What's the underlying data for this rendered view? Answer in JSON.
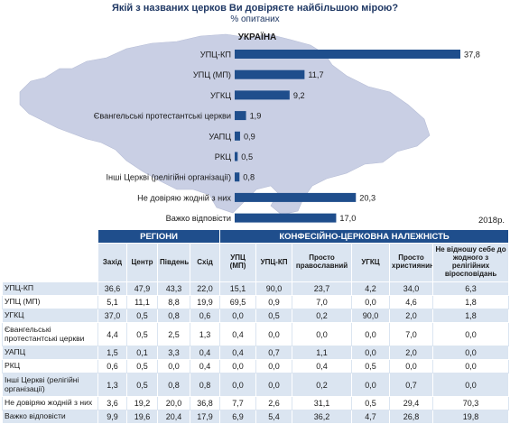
{
  "title": "Якій з названих церков Ви довіряєте найбільшою мірою?",
  "subtitle": "% опитаних",
  "year_label": "2018р.",
  "map_label": "УКРАЇНА",
  "colors": {
    "bar": "#1f4e8c",
    "map": "#c9cfe4",
    "header": "#1f4e8c",
    "row_alt": "#dbe5f1"
  },
  "chart_data": {
    "type": "bar",
    "orientation": "horizontal",
    "categories": [
      "УПЦ-КП",
      "УПЦ (МП)",
      "УГКЦ",
      "Євангельські протестантські церкви",
      "УАПЦ",
      "РКЦ",
      "Інші Церкві (релігійні організації)",
      "Не довіряю жодній з них",
      "Важко відповісти"
    ],
    "value_labels": [
      "37,8",
      "11,7",
      "9,2",
      "1,9",
      "0,9",
      "0,5",
      "0,8",
      "20,3",
      "17,0"
    ],
    "values": [
      37.8,
      11.7,
      9.2,
      1.9,
      0.9,
      0.5,
      0.8,
      20.3,
      17.0
    ]
  },
  "table": {
    "group_regions": "РЕГІОНИ",
    "group_confession": "КОНФЕСІЙНО-ЦЕРКОВНА НАЛЕЖНІСТЬ",
    "columns": [
      "Захід",
      "Центр",
      "Південь",
      "Схід",
      "УПЦ (МП)",
      "УПЦ-КП",
      "Просто православний",
      "УГКЦ",
      "Просто християнин",
      "Не відношу себе до жодного з релігійних віросповідань"
    ],
    "rows": [
      {
        "label": "УПЦ-КП",
        "values": [
          "36,6",
          "47,9",
          "43,3",
          "22,0",
          "15,1",
          "90,0",
          "23,7",
          "4,2",
          "34,0",
          "6,3"
        ]
      },
      {
        "label": "УПЦ (МП)",
        "values": [
          "5,1",
          "11,1",
          "8,8",
          "19,9",
          "69,5",
          "0,9",
          "7,0",
          "0,0",
          "4,6",
          "1,8"
        ]
      },
      {
        "label": "УГКЦ",
        "values": [
          "37,0",
          "0,5",
          "0,8",
          "0,6",
          "0,0",
          "0,5",
          "0,2",
          "90,0",
          "2,0",
          "1,8"
        ]
      },
      {
        "label": "Євангельські протестантські церкви",
        "values": [
          "4,4",
          "0,5",
          "2,5",
          "1,3",
          "0,4",
          "0,0",
          "0,0",
          "0,0",
          "7,0",
          "0,0"
        ]
      },
      {
        "label": "УАПЦ",
        "values": [
          "1,5",
          "0,1",
          "3,3",
          "0,4",
          "0,4",
          "0,7",
          "1,1",
          "0,0",
          "2,0",
          "0,0"
        ]
      },
      {
        "label": "РКЦ",
        "values": [
          "0,6",
          "0,5",
          "0,0",
          "0,4",
          "0,0",
          "0,0",
          "0,4",
          "0,5",
          "0,0",
          "0,0"
        ]
      },
      {
        "label": "Інші Церкві (релігійні організації)",
        "values": [
          "1,3",
          "0,5",
          "0,8",
          "0,8",
          "0,0",
          "0,0",
          "0,2",
          "0,0",
          "0,7",
          "0,0"
        ]
      },
      {
        "label": "Не довіряю жодній з них",
        "values": [
          "3,6",
          "19,2",
          "20,0",
          "36,8",
          "7,7",
          "2,6",
          "31,1",
          "0,5",
          "29,4",
          "70,3"
        ]
      },
      {
        "label": "Важко відповісти",
        "values": [
          "9,9",
          "19,6",
          "20,4",
          "17,9",
          "6,9",
          "5,4",
          "36,2",
          "4,7",
          "26,8",
          "19,8"
        ]
      }
    ]
  }
}
